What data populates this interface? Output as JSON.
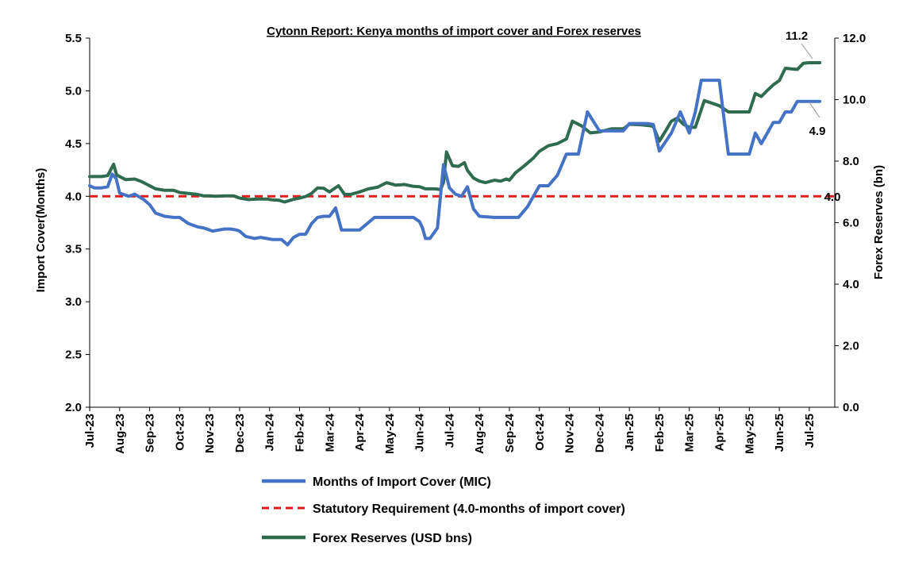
{
  "chart_data": {
    "type": "line",
    "title": "Cytonn Report: Kenya months of import cover and Forex reserves",
    "y_left": {
      "label": "Import Cover(Months)",
      "range": [
        2.0,
        5.5
      ],
      "ticks": [
        "2.0",
        "2.5",
        "3.0",
        "3.5",
        "4.0",
        "4.5",
        "5.0",
        "5.5"
      ]
    },
    "y_right": {
      "label": "Forex Reserves (bn)",
      "range": [
        0.0,
        12.0
      ],
      "ticks": [
        "0.0",
        "2.0",
        "4.0",
        "6.0",
        "8.0",
        "10.0",
        "12.0"
      ]
    },
    "x_ticks": [
      "Jul-23",
      "Aug-23",
      "Sep-23",
      "Oct-23",
      "Nov-23",
      "Dec-23",
      "Jan-24",
      "Feb-24",
      "Mar-24",
      "Apr-24",
      "May-24",
      "Jun-24",
      "Jul-24",
      "Aug-24",
      "Sep-24",
      "Oct-24",
      "Nov-24",
      "Dec-24",
      "Jan-25",
      "Feb-25",
      "Mar-25",
      "Apr-25",
      "May-25",
      "Jun-25",
      "Jul-25"
    ],
    "x_range": [
      0,
      24.85
    ],
    "series": [
      {
        "name": "Months of Import Cover (MIC)",
        "axis": "left",
        "color": "#4472c4",
        "x": [
          0,
          0.15,
          0.4,
          0.6,
          0.75,
          0.88,
          1.0,
          1.3,
          1.5,
          1.8,
          2.0,
          2.2,
          2.5,
          2.8,
          3.0,
          3.3,
          3.6,
          3.8,
          4.0,
          4.1,
          4.3,
          4.5,
          4.7,
          4.9,
          5.0,
          5.2,
          5.5,
          5.7,
          5.9,
          6.1,
          6.2,
          6.4,
          6.6,
          6.8,
          7.0,
          7.2,
          7.4,
          7.6,
          7.8,
          8.0,
          8.2,
          8.4,
          8.6,
          8.8,
          9.0,
          9.5,
          10.0,
          10.4,
          10.6,
          10.8,
          11.0,
          11.1,
          11.2,
          11.35,
          11.6,
          11.8,
          12.0,
          12.2,
          12.4,
          12.6,
          12.8,
          13.0,
          13.5,
          14.0,
          14.3,
          14.6,
          14.8,
          15.0,
          15.3,
          15.6,
          15.9,
          16.1,
          16.3,
          16.6,
          17.0,
          17.5,
          17.8,
          18.0,
          18.6,
          18.8,
          19.0,
          19.4,
          19.7,
          20.0,
          20.2,
          20.4,
          21.0,
          21.3,
          21.6,
          22.0,
          22.2,
          22.4,
          22.6,
          22.8,
          23.0,
          23.2,
          23.4,
          23.6,
          23.8,
          24.0,
          24.2,
          24.35
        ],
        "values": [
          4.1,
          4.08,
          4.08,
          4.09,
          4.21,
          4.17,
          4.03,
          4.0,
          4.02,
          3.97,
          3.92,
          3.84,
          3.81,
          3.8,
          3.8,
          3.74,
          3.71,
          3.7,
          3.68,
          3.67,
          3.68,
          3.69,
          3.69,
          3.68,
          3.67,
          3.62,
          3.6,
          3.61,
          3.6,
          3.59,
          3.59,
          3.59,
          3.54,
          3.61,
          3.64,
          3.64,
          3.74,
          3.8,
          3.81,
          3.81,
          3.89,
          3.68,
          3.68,
          3.68,
          3.68,
          3.8,
          3.8,
          3.8,
          3.8,
          3.8,
          3.76,
          3.7,
          3.6,
          3.6,
          3.7,
          4.3,
          4.08,
          4.02,
          4.0,
          4.09,
          3.88,
          3.81,
          3.8,
          3.8,
          3.8,
          3.9,
          4.0,
          4.1,
          4.1,
          4.2,
          4.4,
          4.4,
          4.4,
          4.8,
          4.62,
          4.62,
          4.62,
          4.69,
          4.69,
          4.68,
          4.43,
          4.6,
          4.8,
          4.6,
          4.8,
          5.1,
          5.1,
          4.4,
          4.4,
          4.4,
          4.6,
          4.5,
          4.6,
          4.7,
          4.7,
          4.8,
          4.8,
          4.9,
          4.9,
          4.9,
          4.9,
          4.9
        ]
      },
      {
        "name": "Statutory Requirement (4.0-months of import cover)",
        "axis": "left",
        "color": "#e31a1c",
        "dashed": true,
        "x": [
          0,
          24.85
        ],
        "values": [
          4.0,
          4.0
        ]
      },
      {
        "name": "Forex Reserves (USD bns)",
        "axis": "right",
        "color": "#2f6b4f",
        "x": [
          0,
          0.2,
          0.4,
          0.6,
          0.8,
          0.9,
          1.2,
          1.5,
          1.7,
          2.0,
          2.2,
          2.5,
          2.8,
          3.0,
          3.3,
          3.6,
          3.8,
          4.0,
          4.2,
          4.5,
          4.8,
          5.0,
          5.3,
          5.6,
          5.9,
          6.1,
          6.3,
          6.5,
          6.8,
          7.0,
          7.2,
          7.4,
          7.6,
          7.8,
          8.0,
          8.1,
          8.3,
          8.5,
          8.7,
          9.0,
          9.3,
          9.6,
          9.9,
          10.2,
          10.5,
          10.8,
          11.0,
          11.2,
          11.5,
          11.7,
          11.8,
          11.9,
          12.1,
          12.3,
          12.5,
          12.6,
          12.8,
          13.0,
          13.2,
          13.5,
          13.7,
          13.9,
          14.0,
          14.2,
          14.5,
          14.8,
          15.0,
          15.3,
          15.6,
          15.9,
          16.1,
          16.2,
          16.4,
          16.7,
          17.0,
          17.4,
          17.8,
          18.0,
          18.4,
          18.7,
          18.8,
          19.0,
          19.2,
          19.4,
          19.6,
          19.8,
          20.0,
          20.2,
          20.5,
          21.0,
          21.3,
          21.6,
          22.0,
          22.2,
          22.4,
          22.6,
          22.8,
          23.0,
          23.2,
          23.4,
          23.6,
          23.8,
          24.0,
          24.2,
          24.35
        ],
        "values": [
          7.5,
          7.5,
          7.5,
          7.53,
          7.9,
          7.55,
          7.4,
          7.42,
          7.35,
          7.2,
          7.1,
          7.05,
          7.05,
          6.98,
          6.95,
          6.92,
          6.87,
          6.87,
          6.86,
          6.87,
          6.87,
          6.8,
          6.75,
          6.77,
          6.77,
          6.74,
          6.73,
          6.67,
          6.76,
          6.8,
          6.85,
          6.95,
          7.13,
          7.12,
          7.0,
          7.07,
          7.2,
          6.92,
          6.92,
          7.0,
          7.1,
          7.15,
          7.3,
          7.22,
          7.24,
          7.18,
          7.17,
          7.1,
          7.1,
          7.08,
          7.3,
          8.3,
          7.85,
          7.83,
          7.95,
          7.7,
          7.45,
          7.35,
          7.3,
          7.38,
          7.35,
          7.42,
          7.38,
          7.62,
          7.85,
          8.1,
          8.32,
          8.5,
          8.57,
          8.72,
          9.3,
          9.25,
          9.15,
          8.92,
          8.95,
          9.05,
          9.05,
          9.2,
          9.18,
          9.15,
          9.12,
          8.65,
          8.97,
          9.3,
          9.4,
          9.2,
          9.1,
          9.1,
          9.97,
          9.8,
          9.6,
          9.6,
          9.6,
          10.2,
          10.1,
          10.3,
          10.48,
          10.62,
          11.02,
          11.0,
          10.98,
          11.18,
          11.2,
          11.2,
          11.2
        ]
      }
    ],
    "annotations": [
      "11.2",
      "4.9",
      "4.0"
    ],
    "legend_position": "bottom",
    "grid": false
  }
}
